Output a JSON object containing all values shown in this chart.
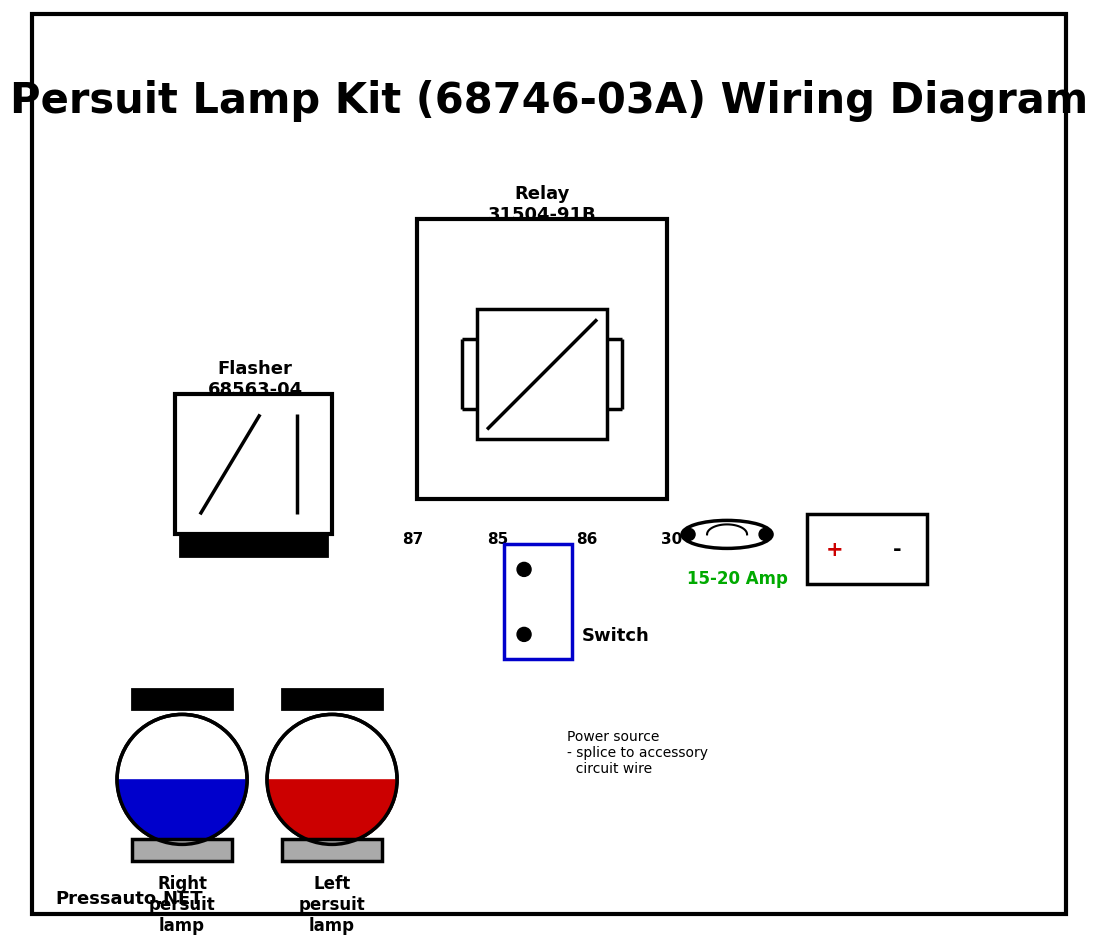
{
  "title": "Persuit Lamp Kit (68746-03A) Wiring Diagram",
  "bg_color": "#ffffff",
  "title_color": "#000000",
  "title_fontsize": 30,
  "watermark": "Pressauto.NET",
  "relay_label": "Relay\n31504-91B",
  "flasher_label": "Flasher\n68563-04",
  "switch_label": "Switch",
  "amp_label": "15-20 Amp",
  "power_note": "Power source\n- splice to accessory\n  circuit wire",
  "right_lamp_label": "Right\npersuit\nlamp",
  "left_lamp_label": "Left\npersuit\nlamp",
  "colors": {
    "red": "#cc0000",
    "blue": "#0000cc",
    "green": "#006600",
    "brown": "#7B3F00",
    "black": "#000000",
    "green_label": "#00aa00"
  }
}
